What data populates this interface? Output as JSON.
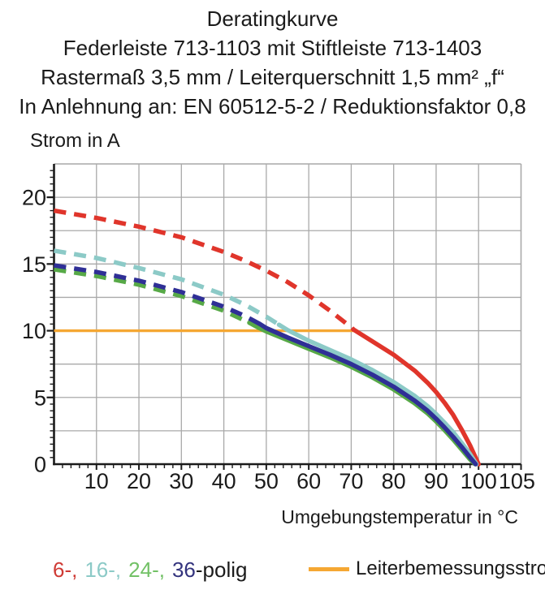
{
  "header": {
    "title": "Deratingkurve",
    "subtitle_product": "Federleiste 713-1103 mit Stiftleiste 713-1403",
    "subtitle_spec": "Rastermaß 3,5 mm / Leiterquerschnitt 1,5 mm² „f“",
    "subtitle_standard": "In Anlehnung an: EN 60512-5-2 / Reduktionsfaktor 0,8"
  },
  "chart_data": {
    "type": "line",
    "title": "Deratingkurve",
    "ylabel": "Strom in A",
    "xlabel": "Umgebungstemperatur in °C",
    "xlim": [
      0,
      110
    ],
    "ylim": [
      0,
      22.5
    ],
    "x_ticks": [
      10,
      20,
      30,
      40,
      50,
      60,
      70,
      80,
      90,
      100,
      105
    ],
    "y_ticks": [
      0,
      5,
      10,
      15,
      20
    ],
    "x_grid_step": 10,
    "y_grid_step": 2.5,
    "x_minor_tick_step": 2,
    "y_minor_tick_step": 0.5,
    "grid": true,
    "grid_color": "#a9a9a9",
    "axis_color": "#1b1b1b",
    "legend_position": "bottom",
    "reference_line": {
      "name": "Leiterbemessungsstrom",
      "color": "#f5a733",
      "value": 10,
      "x_range": [
        0,
        70.5
      ]
    },
    "series": [
      {
        "name": "6-polig",
        "color": "#e0352b",
        "style": "dashed-then-solid",
        "dash_until": 70.5,
        "points": [
          [
            0,
            19.0
          ],
          [
            10,
            18.45
          ],
          [
            20,
            17.8
          ],
          [
            30,
            17.0
          ],
          [
            40,
            15.9
          ],
          [
            45,
            15.25
          ],
          [
            50,
            14.5
          ],
          [
            55,
            13.65
          ],
          [
            60,
            12.65
          ],
          [
            65,
            11.5
          ],
          [
            70,
            10.25
          ],
          [
            70.5,
            10.1
          ],
          [
            75,
            9.2
          ],
          [
            80,
            8.2
          ],
          [
            85,
            7.0
          ],
          [
            88,
            6.1
          ],
          [
            90,
            5.4
          ],
          [
            92,
            4.6
          ],
          [
            94,
            3.7
          ],
          [
            96,
            2.6
          ],
          [
            98,
            1.4
          ],
          [
            100,
            0
          ]
        ]
      },
      {
        "name": "16-polig",
        "color": "#8ccac7",
        "style": "dashed-then-solid",
        "dash_until": 53,
        "points": [
          [
            0,
            16.0
          ],
          [
            10,
            15.45
          ],
          [
            20,
            14.7
          ],
          [
            30,
            13.85
          ],
          [
            40,
            12.7
          ],
          [
            45,
            11.95
          ],
          [
            50,
            11.05
          ],
          [
            53,
            10.45
          ],
          [
            55,
            10.05
          ],
          [
            60,
            9.25
          ],
          [
            65,
            8.55
          ],
          [
            70,
            7.85
          ],
          [
            75,
            7.05
          ],
          [
            80,
            6.15
          ],
          [
            85,
            5.1
          ],
          [
            88,
            4.35
          ],
          [
            90,
            3.75
          ],
          [
            92,
            3.1
          ],
          [
            94,
            2.4
          ],
          [
            96,
            1.6
          ],
          [
            98,
            0.75
          ],
          [
            99.5,
            0
          ]
        ]
      },
      {
        "name": "24-polig",
        "color": "#57a947",
        "style": "dashed-then-solid",
        "dash_until": 46,
        "points": [
          [
            0,
            14.6
          ],
          [
            10,
            14.1
          ],
          [
            20,
            13.45
          ],
          [
            30,
            12.6
          ],
          [
            40,
            11.5
          ],
          [
            44,
            10.9
          ],
          [
            46,
            10.6
          ],
          [
            48,
            10.25
          ],
          [
            50,
            9.95
          ],
          [
            55,
            9.3
          ],
          [
            60,
            8.65
          ],
          [
            65,
            8.0
          ],
          [
            70,
            7.3
          ],
          [
            75,
            6.5
          ],
          [
            80,
            5.6
          ],
          [
            85,
            4.55
          ],
          [
            88,
            3.8
          ],
          [
            90,
            3.2
          ],
          [
            92,
            2.55
          ],
          [
            94,
            1.85
          ],
          [
            96,
            1.1
          ],
          [
            98,
            0.35
          ],
          [
            99.2,
            0
          ]
        ]
      },
      {
        "name": "36-polig",
        "color": "#2f2f96",
        "style": "dashed-then-solid",
        "dash_until": 48.5,
        "points": [
          [
            0,
            14.9
          ],
          [
            10,
            14.4
          ],
          [
            20,
            13.75
          ],
          [
            30,
            12.9
          ],
          [
            40,
            11.8
          ],
          [
            45,
            11.1
          ],
          [
            48.5,
            10.5
          ],
          [
            50,
            10.2
          ],
          [
            55,
            9.5
          ],
          [
            60,
            8.85
          ],
          [
            65,
            8.2
          ],
          [
            70,
            7.5
          ],
          [
            75,
            6.7
          ],
          [
            80,
            5.8
          ],
          [
            85,
            4.75
          ],
          [
            88,
            4.0
          ],
          [
            90,
            3.4
          ],
          [
            92,
            2.75
          ],
          [
            94,
            2.05
          ],
          [
            96,
            1.3
          ],
          [
            98,
            0.5
          ],
          [
            99.3,
            0
          ]
        ]
      }
    ]
  },
  "legend": {
    "pole_items": [
      {
        "label": "6-,",
        "color": "#cf3b35"
      },
      {
        "label": "16-,",
        "color": "#8ccac7"
      },
      {
        "label": "24-,",
        "color": "#72c166"
      },
      {
        "label": "36",
        "color": "#34347e"
      }
    ],
    "pole_suffix": "-polig",
    "reference_label": "Leiterbemessungsstrom"
  }
}
